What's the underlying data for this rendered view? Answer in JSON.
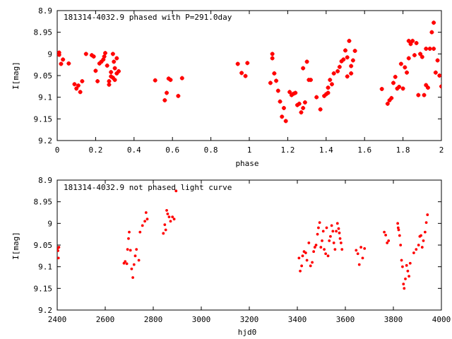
{
  "chart_data": [
    {
      "type": "scatter",
      "title": "181314-4032.9 phased with P=291.0day",
      "xlabel": "phase",
      "ylabel": "I[mag]",
      "xlim": [
        0,
        2
      ],
      "ylim": [
        9.2,
        8.9
      ],
      "y_inverted": true,
      "xticks": [
        "0",
        "0.2",
        "0.4",
        "0.6",
        "0.8",
        "1",
        "1.2",
        "1.4",
        "1.6",
        "1.8",
        "2"
      ],
      "yticks": [
        "8.9",
        "8.95",
        "9",
        "9.05",
        "9.1",
        "9.15",
        "9.2"
      ],
      "marker": "plus",
      "color": "#ff0000",
      "points": [
        [
          0.01,
          8.997
        ],
        [
          0.01,
          9.002
        ],
        [
          0.02,
          9.023
        ],
        [
          0.03,
          9.013
        ],
        [
          0.06,
          9.022
        ],
        [
          0.09,
          9.07
        ],
        [
          0.1,
          9.08
        ],
        [
          0.11,
          9.073
        ],
        [
          0.12,
          9.088
        ],
        [
          0.13,
          9.063
        ],
        [
          0.15,
          9.0
        ],
        [
          0.18,
          9.003
        ],
        [
          0.19,
          9.006
        ],
        [
          0.2,
          9.039
        ],
        [
          0.21,
          9.063
        ],
        [
          0.22,
          9.022
        ],
        [
          0.23,
          9.018
        ],
        [
          0.24,
          9.013
        ],
        [
          0.245,
          9.006
        ],
        [
          0.25,
          8.998
        ],
        [
          0.26,
          9.027
        ],
        [
          0.27,
          9.063
        ],
        [
          0.27,
          9.071
        ],
        [
          0.28,
          9.042
        ],
        [
          0.28,
          9.052
        ],
        [
          0.29,
          9.055
        ],
        [
          0.29,
          9.0
        ],
        [
          0.295,
          9.018
        ],
        [
          0.3,
          9.033
        ],
        [
          0.3,
          9.06
        ],
        [
          0.31,
          9.01
        ],
        [
          0.31,
          9.045
        ],
        [
          0.32,
          9.04
        ],
        [
          0.51,
          9.061
        ],
        [
          0.56,
          9.107
        ],
        [
          0.57,
          9.09
        ],
        [
          0.58,
          9.057
        ],
        [
          0.59,
          9.06
        ],
        [
          0.63,
          9.097
        ],
        [
          0.65,
          9.056
        ],
        [
          0.94,
          9.023
        ],
        [
          0.96,
          9.044
        ],
        [
          0.98,
          9.051
        ],
        [
          0.99,
          9.021
        ],
        [
          1.11,
          9.067
        ],
        [
          1.12,
          9.0
        ],
        [
          1.12,
          9.01
        ],
        [
          1.13,
          9.045
        ],
        [
          1.14,
          9.062
        ],
        [
          1.15,
          9.085
        ],
        [
          1.16,
          9.11
        ],
        [
          1.17,
          9.145
        ],
        [
          1.18,
          9.125
        ],
        [
          1.19,
          9.155
        ],
        [
          1.21,
          9.088
        ],
        [
          1.22,
          9.095
        ],
        [
          1.23,
          9.092
        ],
        [
          1.24,
          9.09
        ],
        [
          1.25,
          9.118
        ],
        [
          1.26,
          9.115
        ],
        [
          1.27,
          9.135
        ],
        [
          1.28,
          9.125
        ],
        [
          1.28,
          9.033
        ],
        [
          1.29,
          9.112
        ],
        [
          1.3,
          9.018
        ],
        [
          1.31,
          9.06
        ],
        [
          1.32,
          9.06
        ],
        [
          1.35,
          9.1
        ],
        [
          1.37,
          9.128
        ],
        [
          1.39,
          9.097
        ],
        [
          1.4,
          9.093
        ],
        [
          1.41,
          9.09
        ],
        [
          1.41,
          9.078
        ],
        [
          1.42,
          9.06
        ],
        [
          1.43,
          9.07
        ],
        [
          1.44,
          9.045
        ],
        [
          1.46,
          9.04
        ],
        [
          1.47,
          9.03
        ],
        [
          1.48,
          9.017
        ],
        [
          1.49,
          9.013
        ],
        [
          1.5,
          8.992
        ],
        [
          1.51,
          9.008
        ],
        [
          1.51,
          9.052
        ],
        [
          1.52,
          8.97
        ],
        [
          1.53,
          9.028
        ],
        [
          1.53,
          9.045
        ],
        [
          1.54,
          9.015
        ],
        [
          1.55,
          8.993
        ],
        [
          1.69,
          9.081
        ],
        [
          1.72,
          9.115
        ],
        [
          1.73,
          9.107
        ],
        [
          1.74,
          9.102
        ],
        [
          1.75,
          9.067
        ],
        [
          1.76,
          9.053
        ],
        [
          1.77,
          9.08
        ],
        [
          1.78,
          9.076
        ],
        [
          1.79,
          9.023
        ],
        [
          1.8,
          9.08
        ],
        [
          1.81,
          9.031
        ],
        [
          1.82,
          9.043
        ],
        [
          1.83,
          9.01
        ],
        [
          1.83,
          8.97
        ],
        [
          1.84,
          8.977
        ],
        [
          1.85,
          8.97
        ],
        [
          1.86,
          9.003
        ],
        [
          1.87,
          8.975
        ],
        [
          1.88,
          9.095
        ],
        [
          1.89,
          9.0
        ],
        [
          1.9,
          9.007
        ],
        [
          1.91,
          9.095
        ],
        [
          1.92,
          9.072
        ],
        [
          1.92,
          8.988
        ],
        [
          1.93,
          9.078
        ],
        [
          1.94,
          8.988
        ],
        [
          1.95,
          8.95
        ],
        [
          1.96,
          8.988
        ],
        [
          1.96,
          8.928
        ],
        [
          1.97,
          9.043
        ],
        [
          1.98,
          9.015
        ],
        [
          1.99,
          9.05
        ],
        [
          2.0,
          9.075
        ],
        [
          2.01,
          9.063
        ]
      ]
    },
    {
      "type": "scatter",
      "title": "181314-4032.9 not phased light curve",
      "xlabel": "hjd0",
      "ylabel": "I[mag]",
      "xlim": [
        2400,
        4000
      ],
      "ylim": [
        9.2,
        8.9
      ],
      "y_inverted": true,
      "xticks": [
        "2400",
        "2600",
        "2800",
        "3000",
        "3200",
        "3400",
        "3600",
        "3800",
        "4000"
      ],
      "yticks": [
        "8.9",
        "8.95",
        "9",
        "9.05",
        "9.1",
        "9.15",
        "9.2"
      ],
      "marker": "dot",
      "color": "#ff0000",
      "points": [
        [
          2401,
          9.058
        ],
        [
          2403,
          9.063
        ],
        [
          2405,
          9.08
        ],
        [
          2407,
          9.055
        ],
        [
          2678,
          9.092
        ],
        [
          2683,
          9.088
        ],
        [
          2690,
          9.093
        ],
        [
          2693,
          9.06
        ],
        [
          2697,
          9.035
        ],
        [
          2700,
          9.02
        ],
        [
          2705,
          9.062
        ],
        [
          2710,
          9.105
        ],
        [
          2715,
          9.125
        ],
        [
          2720,
          9.095
        ],
        [
          2725,
          9.075
        ],
        [
          2730,
          9.06
        ],
        [
          2740,
          9.085
        ],
        [
          2745,
          9.02
        ],
        [
          2755,
          9.005
        ],
        [
          2765,
          8.995
        ],
        [
          2770,
          8.975
        ],
        [
          2775,
          8.99
        ],
        [
          2842,
          9.023
        ],
        [
          2848,
          9.003
        ],
        [
          2852,
          9.015
        ],
        [
          2856,
          8.97
        ],
        [
          2860,
          8.978
        ],
        [
          2866,
          8.985
        ],
        [
          2872,
          8.995
        ],
        [
          2880,
          8.985
        ],
        [
          2887,
          8.99
        ],
        [
          2895,
          8.925
        ],
        [
          3407,
          9.08
        ],
        [
          3412,
          9.11
        ],
        [
          3418,
          9.098
        ],
        [
          3422,
          9.075
        ],
        [
          3428,
          9.065
        ],
        [
          3435,
          9.068
        ],
        [
          3440,
          9.085
        ],
        [
          3448,
          9.045
        ],
        [
          3455,
          9.098
        ],
        [
          3462,
          9.09
        ],
        [
          3468,
          9.065
        ],
        [
          3473,
          9.055
        ],
        [
          3478,
          9.05
        ],
        [
          3484,
          9.025
        ],
        [
          3488,
          9.01
        ],
        [
          3493,
          8.998
        ],
        [
          3498,
          9.055
        ],
        [
          3503,
          9.04
        ],
        [
          3508,
          9.018
        ],
        [
          3512,
          9.06
        ],
        [
          3518,
          9.07
        ],
        [
          3522,
          9.01
        ],
        [
          3528,
          9.075
        ],
        [
          3533,
          9.04
        ],
        [
          3538,
          9.03
        ],
        [
          3543,
          9.005
        ],
        [
          3548,
          9.018
        ],
        [
          3552,
          9.045
        ],
        [
          3557,
          9.06
        ],
        [
          3562,
          9.018
        ],
        [
          3567,
          9.0
        ],
        [
          3572,
          9.012
        ],
        [
          3575,
          9.022
        ],
        [
          3578,
          9.035
        ],
        [
          3582,
          9.045
        ],
        [
          3586,
          9.06
        ],
        [
          3645,
          9.062
        ],
        [
          3652,
          9.07
        ],
        [
          3658,
          9.095
        ],
        [
          3665,
          9.055
        ],
        [
          3672,
          9.08
        ],
        [
          3680,
          9.058
        ],
        [
          3762,
          9.02
        ],
        [
          3768,
          9.027
        ],
        [
          3774,
          9.045
        ],
        [
          3780,
          9.04
        ],
        [
          3818,
          9.0
        ],
        [
          3820,
          9.01
        ],
        [
          3822,
          9.015
        ],
        [
          3826,
          9.028
        ],
        [
          3830,
          9.05
        ],
        [
          3834,
          9.085
        ],
        [
          3838,
          9.1
        ],
        [
          3842,
          9.14
        ],
        [
          3845,
          9.15
        ],
        [
          3850,
          9.128
        ],
        [
          3855,
          9.097
        ],
        [
          3860,
          9.11
        ],
        [
          3865,
          9.122
        ],
        [
          3870,
          9.092
        ],
        [
          3885,
          9.068
        ],
        [
          3895,
          9.06
        ],
        [
          3905,
          9.05
        ],
        [
          3910,
          9.03
        ],
        [
          3915,
          9.028
        ],
        [
          3920,
          9.055
        ],
        [
          3925,
          9.04
        ],
        [
          3932,
          9.02
        ],
        [
          3937,
          8.998
        ],
        [
          3942,
          8.98
        ]
      ]
    }
  ]
}
